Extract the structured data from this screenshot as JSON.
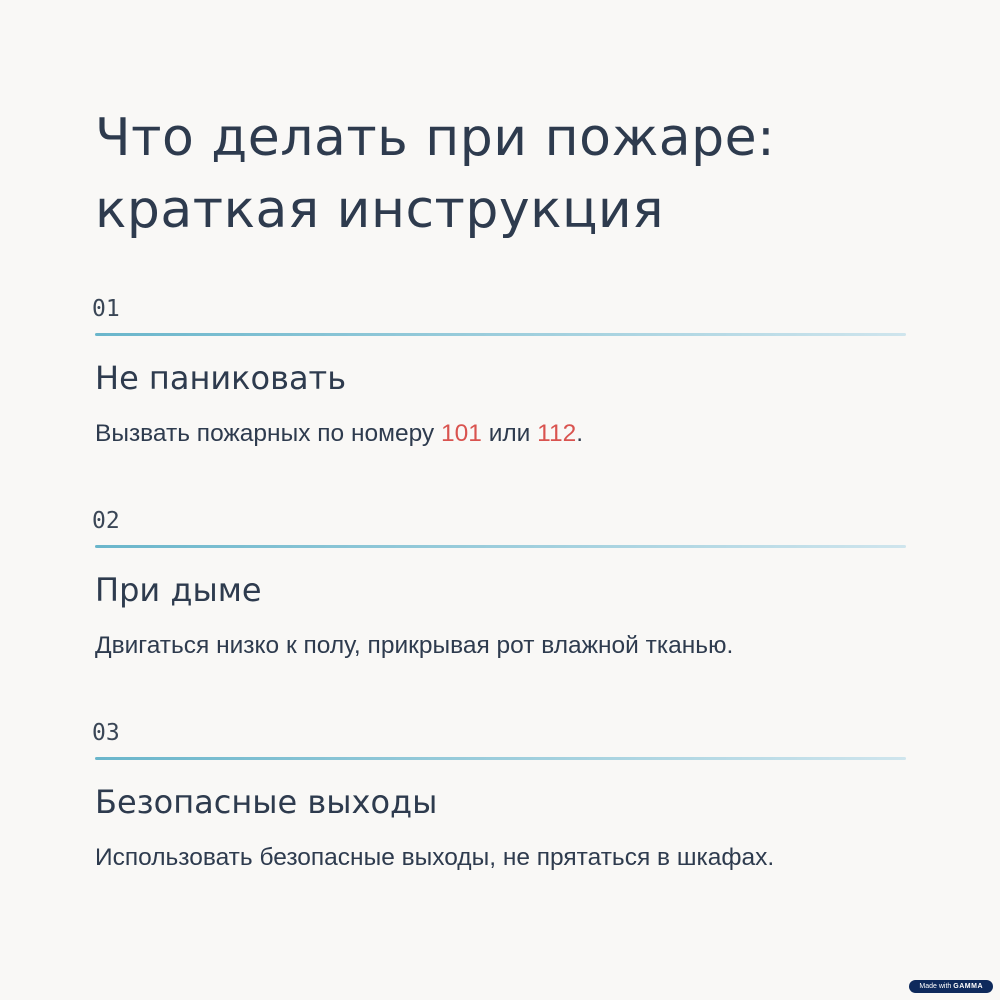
{
  "title": {
    "line1": "Что делать при пожаре:",
    "line2": "краткая инструкция"
  },
  "steps": [
    {
      "number": "01",
      "heading": "Не паниковать",
      "body_parts": [
        "Вызвать пожарных по номеру ",
        "101",
        " или ",
        "112",
        "."
      ]
    },
    {
      "number": "02",
      "heading": "При дыме",
      "body": "Двигаться низко к полу, прикрывая рот влажной тканью."
    },
    {
      "number": "03",
      "heading": "Безопасные выходы",
      "body": "Использовать безопасные выходы, не прятаться в шкафах."
    }
  ],
  "colors": {
    "highlight": "#d9534f",
    "rule_start": "#6ab6cb",
    "rule_end": "#cfe5ed",
    "badge": "#0e2a5c"
  },
  "badge": {
    "prefix": "Made with",
    "brand": "GAMMA"
  }
}
